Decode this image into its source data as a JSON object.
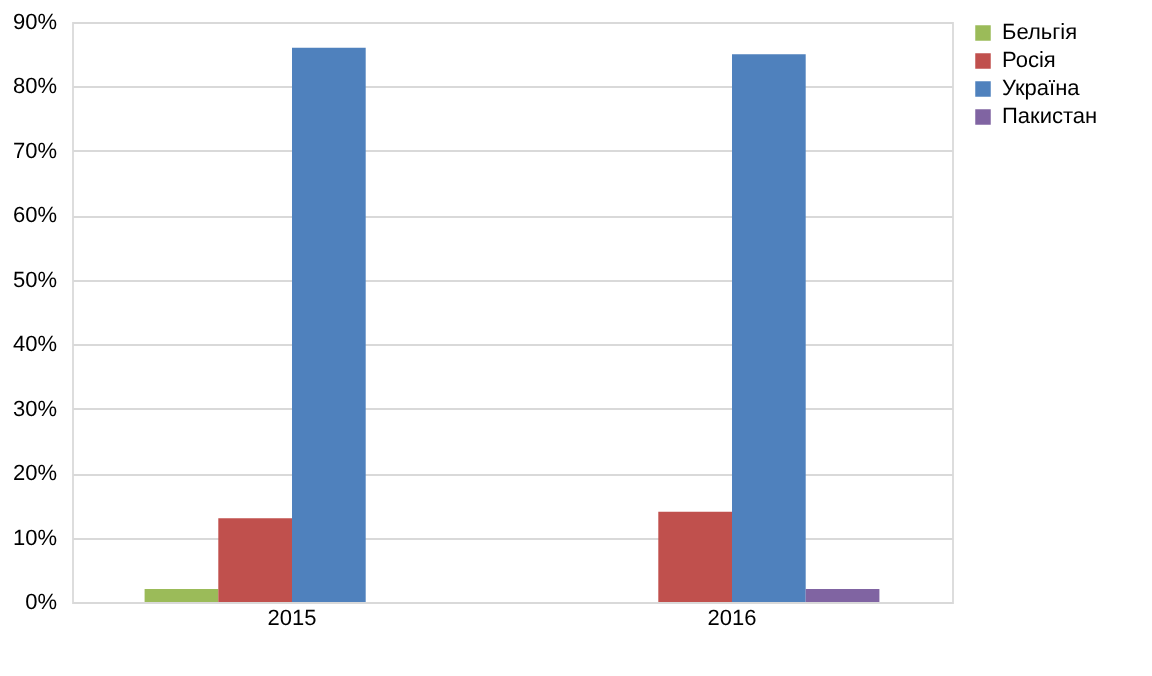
{
  "chart_data": {
    "type": "bar",
    "categories": [
      "2015",
      "2016"
    ],
    "series": [
      {
        "name": "Бельгія",
        "color": "#9bbb59",
        "values": [
          2,
          null
        ]
      },
      {
        "name": "Росія",
        "color": "#c0504d",
        "values": [
          13,
          14
        ]
      },
      {
        "name": "Україна",
        "color": "#4f81bd",
        "values": [
          86,
          85
        ]
      },
      {
        "name": "Пакистан",
        "color": "#8064a2",
        "values": [
          null,
          2
        ]
      }
    ],
    "ylim": [
      0,
      90
    ],
    "yticks": [
      {
        "value": 0,
        "label": "0%"
      },
      {
        "value": 10,
        "label": "10%"
      },
      {
        "value": 20,
        "label": "20%"
      },
      {
        "value": 30,
        "label": "30%"
      },
      {
        "value": 40,
        "label": "40%"
      },
      {
        "value": 50,
        "label": "50%"
      },
      {
        "value": 60,
        "label": "60%"
      },
      {
        "value": 70,
        "label": "70%"
      },
      {
        "value": 80,
        "label": "80%"
      },
      {
        "value": 90,
        "label": "90%"
      }
    ],
    "grid": "y",
    "legend": "right"
  }
}
